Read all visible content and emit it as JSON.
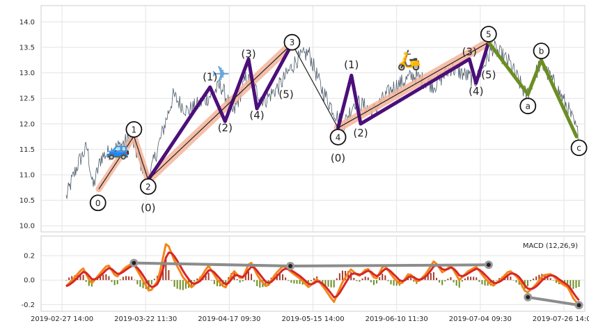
{
  "chart_data": [
    {
      "type": "line",
      "panel": "price",
      "x_ticks": [
        "2019-02-27 14:00",
        "2019-03-22 11:30",
        "2019-04-17 09:30",
        "2019-05-15 14:00",
        "2019-06-10 11:30",
        "2019-07-04 09:30",
        "2019-07-26 14:00"
      ],
      "xlim": [
        -0.25,
        6.25
      ],
      "ylim": [
        9.88,
        14.32
      ],
      "y_ticks": [
        10.0,
        10.5,
        11.0,
        11.5,
        12.0,
        12.5,
        13.0,
        13.5,
        14.0
      ],
      "grid": true,
      "colors": {
        "price": "#4e5d6c",
        "wave_path": "#222222",
        "impulse_band": "#f4b49a",
        "subwave": "#4b0f7a",
        "correction": "#6b8e23"
      },
      "price_anchors": [
        {
          "x": 0.05,
          "y": 10.55
        },
        {
          "x": 0.12,
          "y": 10.9
        },
        {
          "x": 0.2,
          "y": 11.25
        },
        {
          "x": 0.3,
          "y": 11.55
        },
        {
          "x": 0.37,
          "y": 10.75
        },
        {
          "x": 0.47,
          "y": 11.35
        },
        {
          "x": 0.62,
          "y": 11.5
        },
        {
          "x": 0.83,
          "y": 11.72
        },
        {
          "x": 0.93,
          "y": 11.25
        },
        {
          "x": 1.04,
          "y": 10.95
        },
        {
          "x": 1.15,
          "y": 11.55
        },
        {
          "x": 1.33,
          "y": 12.55
        },
        {
          "x": 1.5,
          "y": 12.25
        },
        {
          "x": 1.7,
          "y": 12.45
        },
        {
          "x": 1.9,
          "y": 12.75
        },
        {
          "x": 2.05,
          "y": 12.2
        },
        {
          "x": 2.2,
          "y": 12.9
        },
        {
          "x": 2.42,
          "y": 12.45
        },
        {
          "x": 2.6,
          "y": 12.75
        },
        {
          "x": 2.8,
          "y": 13.25
        },
        {
          "x": 2.95,
          "y": 13.4
        },
        {
          "x": 3.1,
          "y": 12.7
        },
        {
          "x": 3.25,
          "y": 12.25
        },
        {
          "x": 3.36,
          "y": 11.95
        },
        {
          "x": 3.5,
          "y": 12.45
        },
        {
          "x": 3.72,
          "y": 12.25
        },
        {
          "x": 3.95,
          "y": 12.7
        },
        {
          "x": 4.2,
          "y": 12.95
        },
        {
          "x": 4.45,
          "y": 12.75
        },
        {
          "x": 4.65,
          "y": 13.1
        },
        {
          "x": 4.95,
          "y": 12.85
        },
        {
          "x": 5.15,
          "y": 13.5
        },
        {
          "x": 5.35,
          "y": 13.2
        },
        {
          "x": 5.55,
          "y": 12.55
        },
        {
          "x": 5.72,
          "y": 13.2
        },
        {
          "x": 5.9,
          "y": 12.75
        },
        {
          "x": 6.05,
          "y": 12.3
        },
        {
          "x": 6.18,
          "y": 11.75
        }
      ],
      "waves": {
        "main": [
          {
            "label": "0",
            "x": 0.44,
            "y": 10.72
          },
          {
            "label": "1",
            "x": 0.86,
            "y": 11.76
          },
          {
            "label": "2",
            "x": 1.03,
            "y": 10.9
          },
          {
            "label": "3",
            "x": 2.75,
            "y": 13.57
          },
          {
            "label": "4",
            "x": 3.3,
            "y": 11.92
          },
          {
            "label": "5",
            "x": 5.1,
            "y": 13.6
          }
        ],
        "impulse": [
          {
            "x": 1.03,
            "y": 10.9
          },
          {
            "x": 1.77,
            "y": 12.72
          },
          {
            "x": 1.95,
            "y": 12.05
          },
          {
            "x": 2.23,
            "y": 13.27
          },
          {
            "x": 2.33,
            "y": 12.3
          },
          {
            "x": 2.75,
            "y": 13.57
          }
        ],
        "wave5_sub": [
          {
            "x": 3.3,
            "y": 11.92
          },
          {
            "x": 3.46,
            "y": 12.95
          },
          {
            "x": 3.57,
            "y": 12.0
          },
          {
            "x": 4.87,
            "y": 13.27
          },
          {
            "x": 4.95,
            "y": 12.8
          },
          {
            "x": 5.1,
            "y": 13.6
          }
        ],
        "correction": [
          {
            "label": "a",
            "x": 5.57,
            "y": 12.58
          },
          {
            "label": "b",
            "x": 5.73,
            "y": 13.25
          },
          {
            "label": "c",
            "x": 6.15,
            "y": 11.75
          }
        ]
      },
      "labels": [
        {
          "text": "0",
          "x": 0.43,
          "y": 10.45,
          "circled": true
        },
        {
          "text": "1",
          "x": 0.86,
          "y": 11.89,
          "circled": true
        },
        {
          "text": "2",
          "x": 1.03,
          "y": 10.77,
          "circled": true
        },
        {
          "text": "(0)",
          "x": 1.03,
          "y": 10.35,
          "circled": false
        },
        {
          "text": "(1)",
          "x": 1.77,
          "y": 12.92,
          "circled": false
        },
        {
          "text": "(2)",
          "x": 1.95,
          "y": 11.92,
          "circled": false
        },
        {
          "text": "(3)",
          "x": 2.23,
          "y": 13.37,
          "circled": false
        },
        {
          "text": "(4)",
          "x": 2.33,
          "y": 12.17,
          "circled": false
        },
        {
          "text": "(5)",
          "x": 2.68,
          "y": 12.58,
          "circled": false
        },
        {
          "text": "3",
          "x": 2.75,
          "y": 13.6,
          "circled": true
        },
        {
          "text": "4",
          "x": 3.3,
          "y": 11.74,
          "circled": true
        },
        {
          "text": "(0)",
          "x": 3.3,
          "y": 11.33,
          "circled": false
        },
        {
          "text": "(1)",
          "x": 3.46,
          "y": 13.16,
          "circled": false
        },
        {
          "text": "(2)",
          "x": 3.57,
          "y": 11.82,
          "circled": false
        },
        {
          "text": "(3)",
          "x": 4.87,
          "y": 13.41,
          "circled": false
        },
        {
          "text": "(4)",
          "x": 4.95,
          "y": 12.64,
          "circled": false
        },
        {
          "text": "(5)",
          "x": 5.1,
          "y": 12.96,
          "circled": false
        },
        {
          "text": "5",
          "x": 5.1,
          "y": 13.76,
          "circled": true
        },
        {
          "text": "a",
          "x": 5.57,
          "y": 12.35,
          "circled": true
        },
        {
          "text": "b",
          "x": 5.73,
          "y": 13.43,
          "circled": true
        },
        {
          "text": "c",
          "x": 6.18,
          "y": 11.53,
          "circled": true
        }
      ],
      "emoji_markers": [
        {
          "icon": "car-icon",
          "glyph": "🚙",
          "x": 0.67,
          "y": 11.5
        },
        {
          "icon": "airplane-icon",
          "glyph": "✈",
          "x": 1.9,
          "y": 12.95
        },
        {
          "icon": "scooter-icon",
          "glyph": "🛵",
          "x": 4.15,
          "y": 13.25
        }
      ]
    },
    {
      "type": "line",
      "panel": "macd",
      "title": "MACD (12,26,9)",
      "ylim": [
        -0.255,
        0.36
      ],
      "y_ticks": [
        -0.2,
        0.0,
        0.2
      ],
      "xlim": [
        -0.25,
        6.25
      ],
      "x_ticks": [
        "2019-02-27 14:00",
        "2019-03-22 11:30",
        "2019-04-17 09:30",
        "2019-05-15 14:00",
        "2019-06-10 11:30",
        "2019-07-04 09:30",
        "2019-07-26 14:00"
      ],
      "grid": true,
      "colors": {
        "macd": "#f58518",
        "signal": "#d62728",
        "hist_pos": "#a33b2a",
        "hist_neg": "#6b8e23",
        "divergence": "#8c8c8c"
      },
      "macd_anchors": [
        {
          "x": 0.05,
          "y": -0.05
        },
        {
          "x": 0.15,
          "y": 0.02
        },
        {
          "x": 0.25,
          "y": 0.1
        },
        {
          "x": 0.35,
          "y": -0.03
        },
        {
          "x": 0.45,
          "y": 0.05
        },
        {
          "x": 0.55,
          "y": 0.13
        },
        {
          "x": 0.65,
          "y": 0.02
        },
        {
          "x": 0.75,
          "y": 0.1
        },
        {
          "x": 0.85,
          "y": 0.14
        },
        {
          "x": 0.95,
          "y": 0.02
        },
        {
          "x": 1.05,
          "y": -0.1
        },
        {
          "x": 1.15,
          "y": 0.0
        },
        {
          "x": 1.25,
          "y": 0.32
        },
        {
          "x": 1.35,
          "y": 0.15
        },
        {
          "x": 1.45,
          "y": 0.02
        },
        {
          "x": 1.55,
          "y": -0.06
        },
        {
          "x": 1.65,
          "y": 0.01
        },
        {
          "x": 1.75,
          "y": 0.12
        },
        {
          "x": 1.85,
          "y": 0.01
        },
        {
          "x": 1.95,
          "y": -0.07
        },
        {
          "x": 2.05,
          "y": 0.08
        },
        {
          "x": 2.15,
          "y": 0.0
        },
        {
          "x": 2.25,
          "y": 0.16
        },
        {
          "x": 2.35,
          "y": 0.02
        },
        {
          "x": 2.45,
          "y": -0.06
        },
        {
          "x": 2.55,
          "y": 0.05
        },
        {
          "x": 2.65,
          "y": 0.12
        },
        {
          "x": 2.75,
          "y": 0.06
        },
        {
          "x": 2.85,
          "y": 0.01
        },
        {
          "x": 2.95,
          "y": -0.06
        },
        {
          "x": 3.05,
          "y": 0.01
        },
        {
          "x": 3.15,
          "y": -0.08
        },
        {
          "x": 3.25,
          "y": -0.18
        },
        {
          "x": 3.35,
          "y": -0.02
        },
        {
          "x": 3.45,
          "y": 0.09
        },
        {
          "x": 3.55,
          "y": 0.03
        },
        {
          "x": 3.65,
          "y": 0.1
        },
        {
          "x": 3.75,
          "y": 0.0
        },
        {
          "x": 3.85,
          "y": 0.13
        },
        {
          "x": 3.95,
          "y": 0.03
        },
        {
          "x": 4.05,
          "y": -0.04
        },
        {
          "x": 4.15,
          "y": 0.06
        },
        {
          "x": 4.25,
          "y": -0.02
        },
        {
          "x": 4.35,
          "y": 0.05
        },
        {
          "x": 4.45,
          "y": 0.16
        },
        {
          "x": 4.55,
          "y": 0.06
        },
        {
          "x": 4.65,
          "y": 0.12
        },
        {
          "x": 4.75,
          "y": 0.0
        },
        {
          "x": 4.85,
          "y": 0.07
        },
        {
          "x": 4.95,
          "y": 0.11
        },
        {
          "x": 5.05,
          "y": 0.02
        },
        {
          "x": 5.15,
          "y": -0.05
        },
        {
          "x": 5.25,
          "y": 0.01
        },
        {
          "x": 5.35,
          "y": 0.08
        },
        {
          "x": 5.45,
          "y": 0.02
        },
        {
          "x": 5.55,
          "y": -0.11
        },
        {
          "x": 5.65,
          "y": -0.05
        },
        {
          "x": 5.75,
          "y": 0.04
        },
        {
          "x": 5.85,
          "y": 0.05
        },
        {
          "x": 5.95,
          "y": -0.02
        },
        {
          "x": 6.05,
          "y": -0.06
        },
        {
          "x": 6.12,
          "y": -0.16
        },
        {
          "x": 6.18,
          "y": -0.2
        }
      ],
      "divergence_lines": [
        {
          "points": [
            {
              "x": 0.86,
              "y": 0.14
            },
            {
              "x": 2.73,
              "y": 0.115
            },
            {
              "x": 5.1,
              "y": 0.125
            }
          ]
        },
        {
          "points": [
            {
              "x": 5.57,
              "y": -0.14
            },
            {
              "x": 6.18,
              "y": -0.205
            }
          ]
        }
      ]
    }
  ]
}
